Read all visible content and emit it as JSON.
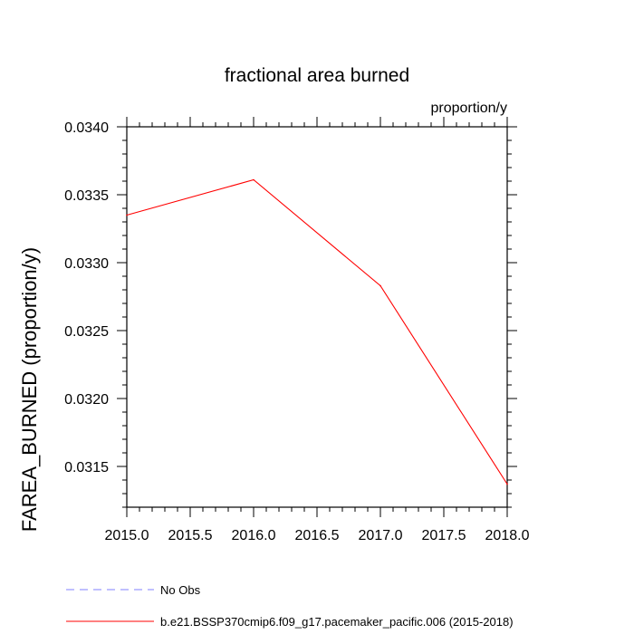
{
  "chart_data": {
    "type": "line",
    "title": "fractional area burned",
    "units_label": "proportion/y",
    "xlabel": "",
    "ylabel": "FAREA_BURNED  (proportion/y)",
    "xlim": [
      2015.0,
      2018.0
    ],
    "ylim": [
      0.0312,
      0.034
    ],
    "x_ticks": [
      2015.0,
      2015.5,
      2016.0,
      2016.5,
      2017.0,
      2017.5,
      2018.0
    ],
    "x_tick_labels": [
      "2015.0",
      "2015.5",
      "2016.0",
      "2016.5",
      "2017.0",
      "2017.5",
      "2018.0"
    ],
    "y_ticks": [
      0.0315,
      0.032,
      0.0325,
      0.033,
      0.0335,
      0.034
    ],
    "y_tick_labels": [
      "0.0315",
      "0.0320",
      "0.0325",
      "0.0330",
      "0.0335",
      "0.0340"
    ],
    "grid": false,
    "legend_placement": "bottom-left, below plot",
    "series": [
      {
        "name": "b.e21.BSSP370cmip6.f09_g17.pacemaker_pacific.006 (2015-2018)",
        "color": "#ff0000",
        "style": "solid",
        "x": [
          2015.0,
          2016.0,
          2017.0,
          2018.0
        ],
        "y": [
          0.03335,
          0.03361,
          0.03283,
          0.03137
        ]
      }
    ],
    "legend": [
      {
        "label": "No Obs",
        "color": "#8080ff",
        "style": "dashed"
      },
      {
        "label": "b.e21.BSSP370cmip6.f09_g17.pacemaker_pacific.006 (2015-2018)",
        "color": "#ff0000",
        "style": "solid"
      }
    ]
  }
}
